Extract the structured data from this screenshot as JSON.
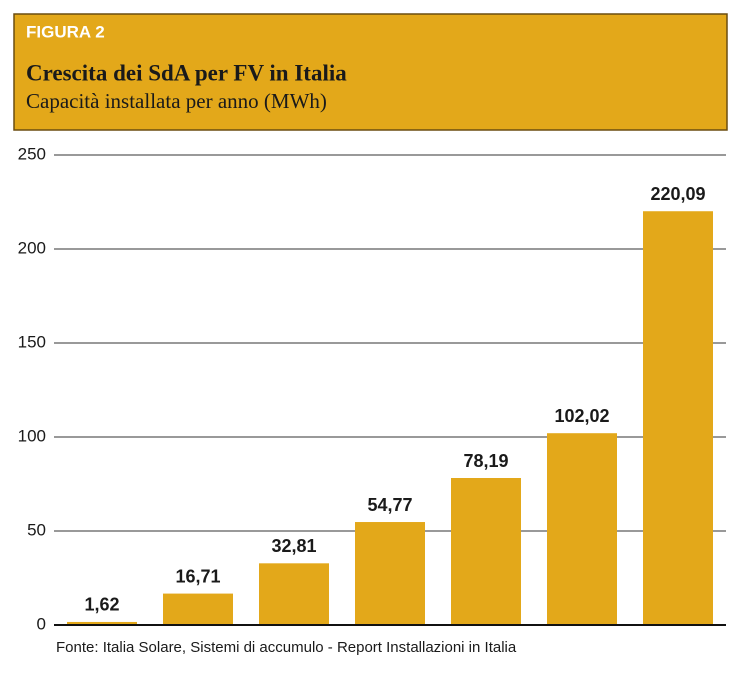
{
  "chart_data": {
    "type": "bar",
    "figure_label": "FIGURA 2",
    "title": "Crescita dei SdA per FV in Italia",
    "subtitle": "Capacità installata per anno (MWh)",
    "source": "Fonte: Italia Solare, Sistemi di accumulo - Report Installazioni in Italia",
    "categories": [
      null,
      null,
      null,
      null,
      null,
      null,
      null
    ],
    "values": [
      1.62,
      16.71,
      32.81,
      54.77,
      78.19,
      102.02,
      220.09
    ],
    "value_labels": [
      "1,62",
      "16,71",
      "32,81",
      "54,77",
      "78,19",
      "102,02",
      "220,09"
    ],
    "color": "#e3a81a",
    "ylim": [
      0,
      250
    ],
    "yticks": [
      0,
      50,
      100,
      150,
      200,
      250
    ],
    "grid": true
  }
}
